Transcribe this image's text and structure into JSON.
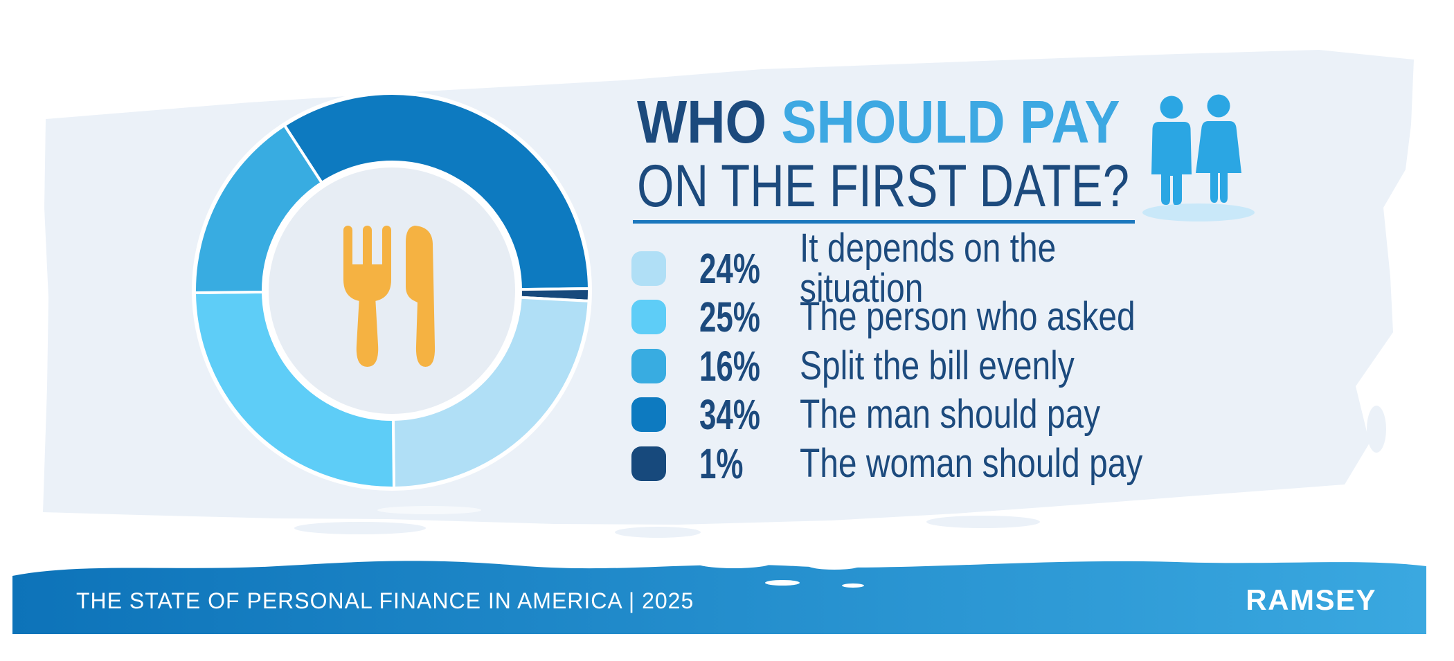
{
  "palette": {
    "wash": "#EBF1F8",
    "plate": "#E7EDF4",
    "navy_text": "#1C4A7D",
    "title_blue": "#3DA8E2",
    "underline_blue": "#1B77BD",
    "cutlery_orange": "#F5B242",
    "people_blue": "#2BA6E3",
    "people_shadow": "#C9E8F9",
    "footer_gradient_left": "#0D73B9",
    "footer_gradient_right": "#3AA8E0",
    "white": "#FFFFFF"
  },
  "title": {
    "part1": "WHO",
    "part2": " SHOULD PAY",
    "line2": "ON THE FIRST DATE?"
  },
  "chart_data": {
    "type": "pie",
    "subtype": "donut",
    "title": "WHO SHOULD PAY ON THE FIRST DATE?",
    "legend_position": "right",
    "center_icon": "fork-and-knife",
    "start_angle_deg": -33,
    "draw_order": [
      3,
      4,
      0,
      1,
      2
    ],
    "segments": [
      {
        "label": "It depends on the situation",
        "value": 24,
        "pct": "24%",
        "color": "#B0DFF6"
      },
      {
        "label": "The person who asked",
        "value": 25,
        "pct": "25%",
        "color": "#5ECDF7"
      },
      {
        "label": "Split the bill evenly",
        "value": 16,
        "pct": "16%",
        "color": "#38ACE1"
      },
      {
        "label": "The man should pay",
        "value": 34,
        "pct": "34%",
        "color": "#0D7AC0"
      },
      {
        "label": "The woman should pay",
        "value": 1,
        "pct": "1%",
        "color": "#17497C"
      }
    ]
  },
  "footer": {
    "source": "THE STATE OF PERSONAL FINANCE IN AMERICA | 2025",
    "brand": "RAMSEY"
  }
}
